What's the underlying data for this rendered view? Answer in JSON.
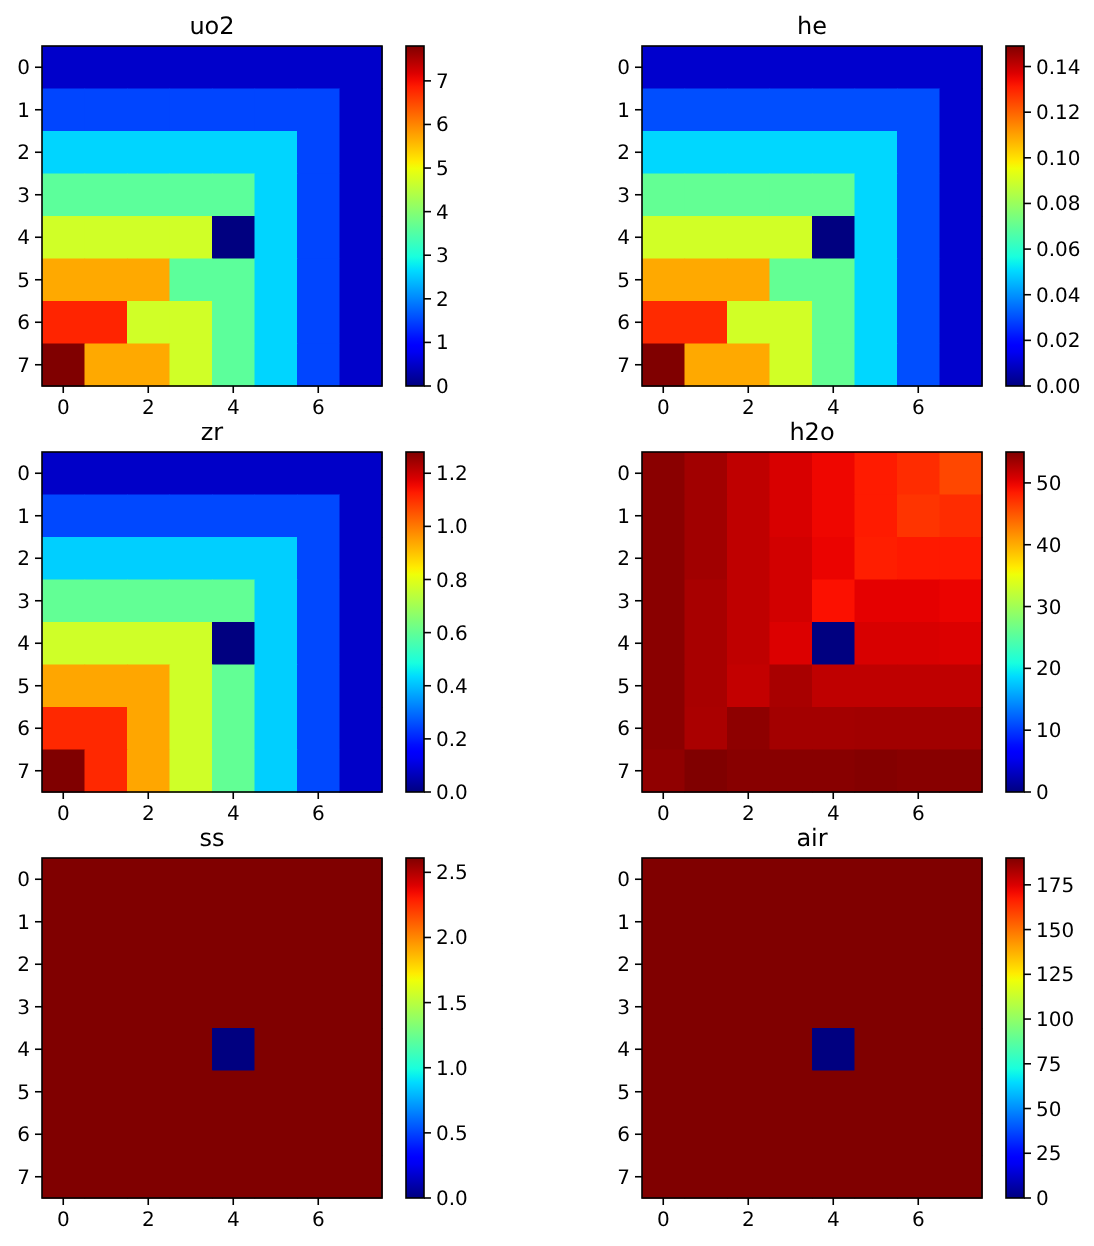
{
  "chart_data": [
    {
      "type": "heatmap",
      "title": "uo2",
      "categories": [
        "0",
        null,
        "2",
        null,
        "4",
        null,
        "6",
        null
      ],
      "y_categories": [
        "0",
        "1",
        "2",
        "3",
        "4",
        "5",
        "6",
        "7"
      ],
      "cells": [
        [
          0.5,
          0.5,
          0.5,
          0.5,
          0.5,
          0.5,
          0.5,
          0.5
        ],
        [
          1.5,
          1.5,
          1.5,
          1.5,
          1.5,
          1.5,
          1.5,
          0.5
        ],
        [
          2.6,
          2.6,
          2.6,
          2.6,
          2.6,
          2.6,
          1.5,
          0.5
        ],
        [
          3.6,
          3.6,
          3.6,
          3.6,
          3.6,
          2.6,
          1.5,
          0.5
        ],
        [
          4.7,
          4.7,
          4.7,
          4.7,
          0,
          2.6,
          1.5,
          0.5
        ],
        [
          5.7,
          5.7,
          5.7,
          3.6,
          3.6,
          2.6,
          1.5,
          0.5
        ],
        [
          6.8,
          6.8,
          4.7,
          4.7,
          3.6,
          2.6,
          1.5,
          0.5
        ],
        [
          7.8,
          5.7,
          5.7,
          4.7,
          3.6,
          2.6,
          1.5,
          0.5
        ]
      ],
      "clim": [
        0,
        7.8
      ],
      "cticks": [
        0,
        1,
        2,
        3,
        4,
        5,
        6,
        7
      ]
    },
    {
      "type": "heatmap",
      "title": "he",
      "categories": [
        "0",
        null,
        "2",
        null,
        "4",
        null,
        "6",
        null
      ],
      "y_categories": [
        "0",
        "1",
        "2",
        "3",
        "4",
        "5",
        "6",
        "7"
      ],
      "cells": [
        [
          0.01,
          0.01,
          0.01,
          0.01,
          0.01,
          0.01,
          0.01,
          0.01
        ],
        [
          0.03,
          0.03,
          0.03,
          0.03,
          0.03,
          0.03,
          0.03,
          0.01
        ],
        [
          0.05,
          0.05,
          0.05,
          0.05,
          0.05,
          0.05,
          0.03,
          0.01
        ],
        [
          0.07,
          0.07,
          0.07,
          0.07,
          0.07,
          0.05,
          0.03,
          0.01
        ],
        [
          0.09,
          0.09,
          0.09,
          0.09,
          0,
          0.05,
          0.03,
          0.01
        ],
        [
          0.109,
          0.109,
          0.109,
          0.07,
          0.07,
          0.05,
          0.03,
          0.01
        ],
        [
          0.129,
          0.129,
          0.09,
          0.09,
          0.07,
          0.05,
          0.03,
          0.01
        ],
        [
          0.149,
          0.109,
          0.109,
          0.09,
          0.07,
          0.05,
          0.03,
          0.01
        ]
      ],
      "clim": [
        0,
        0.149
      ],
      "cticks": [
        {
          "value": 0,
          "label": "0.00"
        },
        {
          "value": 0.02,
          "label": "0.02"
        },
        {
          "value": 0.04,
          "label": "0.04"
        },
        {
          "value": 0.06,
          "label": "0.06"
        },
        {
          "value": 0.08,
          "label": "0.08"
        },
        {
          "value": 0.1,
          "label": "0.10"
        },
        {
          "value": 0.12,
          "label": "0.12"
        },
        {
          "value": 0.14,
          "label": "0.14"
        }
      ]
    },
    {
      "type": "heatmap",
      "title": "zr",
      "categories": [
        "0",
        null,
        "2",
        null,
        "4",
        null,
        "6",
        null
      ],
      "y_categories": [
        "0",
        "1",
        "2",
        "3",
        "4",
        "5",
        "6",
        "7"
      ],
      "cells": [
        [
          0.08,
          0.08,
          0.08,
          0.08,
          0.08,
          0.08,
          0.08,
          0.08
        ],
        [
          0.25,
          0.25,
          0.25,
          0.25,
          0.25,
          0.25,
          0.25,
          0.08
        ],
        [
          0.42,
          0.42,
          0.42,
          0.42,
          0.42,
          0.42,
          0.25,
          0.08
        ],
        [
          0.6,
          0.6,
          0.6,
          0.6,
          0.6,
          0.42,
          0.25,
          0.08
        ],
        [
          0.77,
          0.77,
          0.77,
          0.77,
          0,
          0.42,
          0.25,
          0.08
        ],
        [
          0.94,
          0.94,
          0.94,
          0.77,
          0.6,
          0.42,
          0.25,
          0.08
        ],
        [
          1.11,
          1.11,
          0.94,
          0.77,
          0.6,
          0.42,
          0.25,
          0.08
        ],
        [
          1.28,
          1.11,
          0.94,
          0.77,
          0.6,
          0.42,
          0.25,
          0.08
        ]
      ],
      "clim": [
        0,
        1.28
      ],
      "cticks": [
        {
          "value": 0,
          "label": "0.0"
        },
        {
          "value": 0.2,
          "label": "0.2"
        },
        {
          "value": 0.4,
          "label": "0.4"
        },
        {
          "value": 0.6,
          "label": "0.6"
        },
        {
          "value": 0.8,
          "label": "0.8"
        },
        {
          "value": 1,
          "label": "1.0"
        },
        {
          "value": 1.2,
          "label": "1.2"
        }
      ]
    },
    {
      "type": "heatmap",
      "title": "h2o",
      "categories": [
        "0",
        null,
        "2",
        null,
        "4",
        null,
        "6",
        null
      ],
      "y_categories": [
        "0",
        "1",
        "2",
        "3",
        "4",
        "5",
        "6",
        "7"
      ],
      "cells": [
        [
          54.5,
          53.4,
          52,
          50.8,
          49.7,
          48.5,
          47.5,
          45.9
        ],
        [
          54.5,
          53.4,
          52,
          50.8,
          49.7,
          48.5,
          47,
          47.5
        ],
        [
          54.5,
          53.4,
          52,
          51.1,
          49.9,
          48.3,
          48.6,
          48.6
        ],
        [
          54.5,
          53.1,
          52,
          51.1,
          49.1,
          50.2,
          50.2,
          49.9
        ],
        [
          54.5,
          53.1,
          52,
          50.6,
          0,
          50.8,
          50.8,
          50.6
        ],
        [
          54.5,
          53.1,
          51.8,
          53.1,
          52,
          52,
          52,
          52
        ],
        [
          54.5,
          53,
          54.3,
          53.3,
          53.3,
          53.4,
          53.4,
          53.4
        ],
        [
          54.2,
          55,
          54.6,
          54.6,
          54.6,
          54.8,
          54.6,
          54.6
        ]
      ],
      "clim": [
        0,
        55
      ],
      "cticks": [
        0,
        10,
        20,
        30,
        40,
        50
      ]
    },
    {
      "type": "heatmap",
      "title": "ss",
      "categories": [
        "0",
        null,
        "2",
        null,
        "4",
        null,
        "6",
        null
      ],
      "y_categories": [
        "0",
        "1",
        "2",
        "3",
        "4",
        "5",
        "6",
        "7"
      ],
      "cells": [
        [
          2.61,
          2.61,
          2.61,
          2.61,
          2.61,
          2.61,
          2.61,
          2.61
        ],
        [
          2.61,
          2.61,
          2.61,
          2.61,
          2.61,
          2.61,
          2.61,
          2.61
        ],
        [
          2.61,
          2.61,
          2.61,
          2.61,
          2.61,
          2.61,
          2.61,
          2.61
        ],
        [
          2.61,
          2.61,
          2.61,
          2.61,
          2.61,
          2.61,
          2.61,
          2.61
        ],
        [
          2.61,
          2.61,
          2.61,
          2.61,
          0,
          2.61,
          2.61,
          2.61
        ],
        [
          2.61,
          2.61,
          2.61,
          2.61,
          2.61,
          2.61,
          2.61,
          2.61
        ],
        [
          2.61,
          2.61,
          2.61,
          2.61,
          2.61,
          2.61,
          2.61,
          2.61
        ],
        [
          2.61,
          2.61,
          2.61,
          2.61,
          2.61,
          2.61,
          2.61,
          2.61
        ]
      ],
      "clim": [
        0,
        2.61
      ],
      "cticks": [
        {
          "value": 0,
          "label": "0.0"
        },
        {
          "value": 0.5,
          "label": "0.5"
        },
        {
          "value": 1,
          "label": "1.0"
        },
        {
          "value": 1.5,
          "label": "1.5"
        },
        {
          "value": 2,
          "label": "2.0"
        },
        {
          "value": 2.5,
          "label": "2.5"
        }
      ]
    },
    {
      "type": "heatmap",
      "title": "air",
      "categories": [
        "0",
        null,
        "2",
        null,
        "4",
        null,
        "6",
        null
      ],
      "y_categories": [
        "0",
        "1",
        "2",
        "3",
        "4",
        "5",
        "6",
        "7"
      ],
      "cells": [
        [
          190,
          190,
          190,
          190,
          190,
          190,
          190,
          190
        ],
        [
          190,
          190,
          190,
          190,
          190,
          190,
          190,
          190
        ],
        [
          190,
          190,
          190,
          190,
          190,
          190,
          190,
          190
        ],
        [
          190,
          190,
          190,
          190,
          190,
          190,
          190,
          190
        ],
        [
          190,
          190,
          190,
          190,
          0,
          190,
          190,
          190
        ],
        [
          190,
          190,
          190,
          190,
          190,
          190,
          190,
          190
        ],
        [
          190,
          190,
          190,
          190,
          190,
          190,
          190,
          190
        ],
        [
          190,
          190,
          190,
          190,
          190,
          190,
          190,
          190
        ]
      ],
      "clim": [
        0,
        190
      ],
      "cticks": [
        0,
        25,
        50,
        75,
        100,
        125,
        150,
        175
      ]
    }
  ]
}
